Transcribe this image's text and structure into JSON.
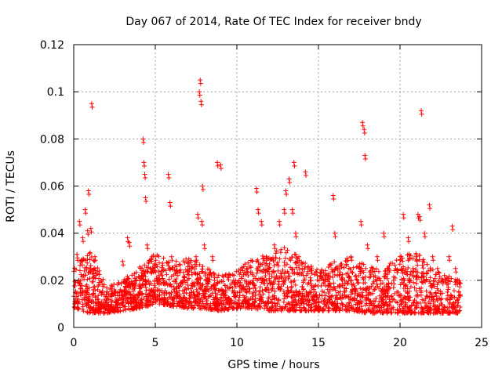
{
  "chart_data": {
    "type": "scatter",
    "title": "Day 067 of 2014, Rate Of TEC Index for receiver bndy",
    "xlabel": "GPS time / hours",
    "ylabel": "ROTI / TECUs",
    "xlim": [
      0,
      25
    ],
    "ylim": [
      0,
      0.12
    ],
    "x_ticks": [
      0,
      5,
      10,
      15,
      20,
      25
    ],
    "x_tick_labels": [
      "0",
      "5",
      "10",
      "15",
      "20",
      "25"
    ],
    "y_ticks": [
      0,
      0.02,
      0.04,
      0.06,
      0.08,
      0.1,
      0.12
    ],
    "y_tick_labels": [
      "0",
      "0.02",
      "0.04",
      "0.06",
      "0.08",
      "0.1",
      "0.12"
    ],
    "grid": true,
    "marker": "+",
    "color": "#ff0000",
    "series": [
      {
        "name": "ROTI",
        "x": [
          0.1,
          0.2,
          0.3,
          0.35,
          0.4,
          0.5,
          0.55,
          0.6,
          0.7,
          0.8,
          0.85,
          0.9,
          1.0,
          1.05,
          1.1,
          1.2,
          1.3,
          1.5,
          1.8,
          2.0,
          2.3,
          2.6,
          2.9,
          3.0,
          3.2,
          3.3,
          3.4,
          3.5,
          3.8,
          4.0,
          4.2,
          4.25,
          4.3,
          4.35,
          4.4,
          4.5,
          4.7,
          4.9,
          5.0,
          5.2,
          5.5,
          5.8,
          5.9,
          6.0,
          6.3,
          6.6,
          7.0,
          7.2,
          7.5,
          7.6,
          7.7,
          7.75,
          7.8,
          7.85,
          7.9,
          8.0,
          8.2,
          8.5,
          8.8,
          9.0,
          9.2,
          9.5,
          9.8,
          10.0,
          10.3,
          10.6,
          11.0,
          11.2,
          11.3,
          11.5,
          11.8,
          12.0,
          12.3,
          12.6,
          12.9,
          13.0,
          13.2,
          13.4,
          13.5,
          13.6,
          13.8,
          14.0,
          14.2,
          14.5,
          14.8,
          15.0,
          15.3,
          15.6,
          15.9,
          16.0,
          16.3,
          16.6,
          17.0,
          17.3,
          17.6,
          17.7,
          17.8,
          17.85,
          18.0,
          18.3,
          18.6,
          19.0,
          19.3,
          19.6,
          20.0,
          20.2,
          20.5,
          20.8,
          21.0,
          21.1,
          21.2,
          21.3,
          21.5,
          21.8,
          22.0,
          22.3,
          22.6,
          22.9,
          23.0,
          23.2,
          23.4,
          23.6
        ],
        "y": [
          0.012,
          0.031,
          0.02,
          0.045,
          0.015,
          0.028,
          0.038,
          0.022,
          0.05,
          0.018,
          0.041,
          0.058,
          0.025,
          0.042,
          0.095,
          0.016,
          0.03,
          0.012,
          0.01,
          0.014,
          0.009,
          0.012,
          0.015,
          0.028,
          0.02,
          0.038,
          0.036,
          0.014,
          0.012,
          0.018,
          0.022,
          0.08,
          0.07,
          0.065,
          0.055,
          0.035,
          0.025,
          0.015,
          0.03,
          0.022,
          0.02,
          0.065,
          0.053,
          0.03,
          0.015,
          0.012,
          0.018,
          0.025,
          0.03,
          0.048,
          0.1,
          0.105,
          0.096,
          0.045,
          0.06,
          0.035,
          0.02,
          0.03,
          0.07,
          0.069,
          0.015,
          0.012,
          0.02,
          0.01,
          0.018,
          0.025,
          0.02,
          0.059,
          0.05,
          0.045,
          0.03,
          0.02,
          0.035,
          0.045,
          0.05,
          0.058,
          0.063,
          0.05,
          0.07,
          0.04,
          0.03,
          0.025,
          0.066,
          0.02,
          0.015,
          0.012,
          0.02,
          0.022,
          0.056,
          0.04,
          0.025,
          0.02,
          0.03,
          0.022,
          0.045,
          0.087,
          0.084,
          0.073,
          0.035,
          0.025,
          0.03,
          0.04,
          0.025,
          0.02,
          0.03,
          0.048,
          0.038,
          0.025,
          0.03,
          0.048,
          0.047,
          0.092,
          0.04,
          0.052,
          0.03,
          0.025,
          0.02,
          0.015,
          0.03,
          0.043,
          0.025,
          0.015
        ]
      }
    ],
    "density_envelope": {
      "note": "dense ROTI band envelope sampled per hour",
      "hours": [
        0,
        1,
        2,
        3,
        4,
        5,
        6,
        7,
        8,
        9,
        10,
        11,
        12,
        13,
        14,
        15,
        16,
        17,
        18,
        19,
        20,
        21,
        22,
        23,
        23.7
      ],
      "band_low": [
        0.008,
        0.006,
        0.006,
        0.007,
        0.008,
        0.01,
        0.009,
        0.008,
        0.008,
        0.007,
        0.008,
        0.008,
        0.007,
        0.007,
        0.007,
        0.007,
        0.007,
        0.007,
        0.006,
        0.006,
        0.006,
        0.006,
        0.006,
        0.006,
        0.006
      ],
      "band_high": [
        0.03,
        0.032,
        0.018,
        0.02,
        0.026,
        0.032,
        0.028,
        0.03,
        0.026,
        0.022,
        0.024,
        0.03,
        0.032,
        0.034,
        0.03,
        0.024,
        0.028,
        0.03,
        0.026,
        0.026,
        0.03,
        0.032,
        0.026,
        0.022,
        0.02
      ]
    }
  }
}
